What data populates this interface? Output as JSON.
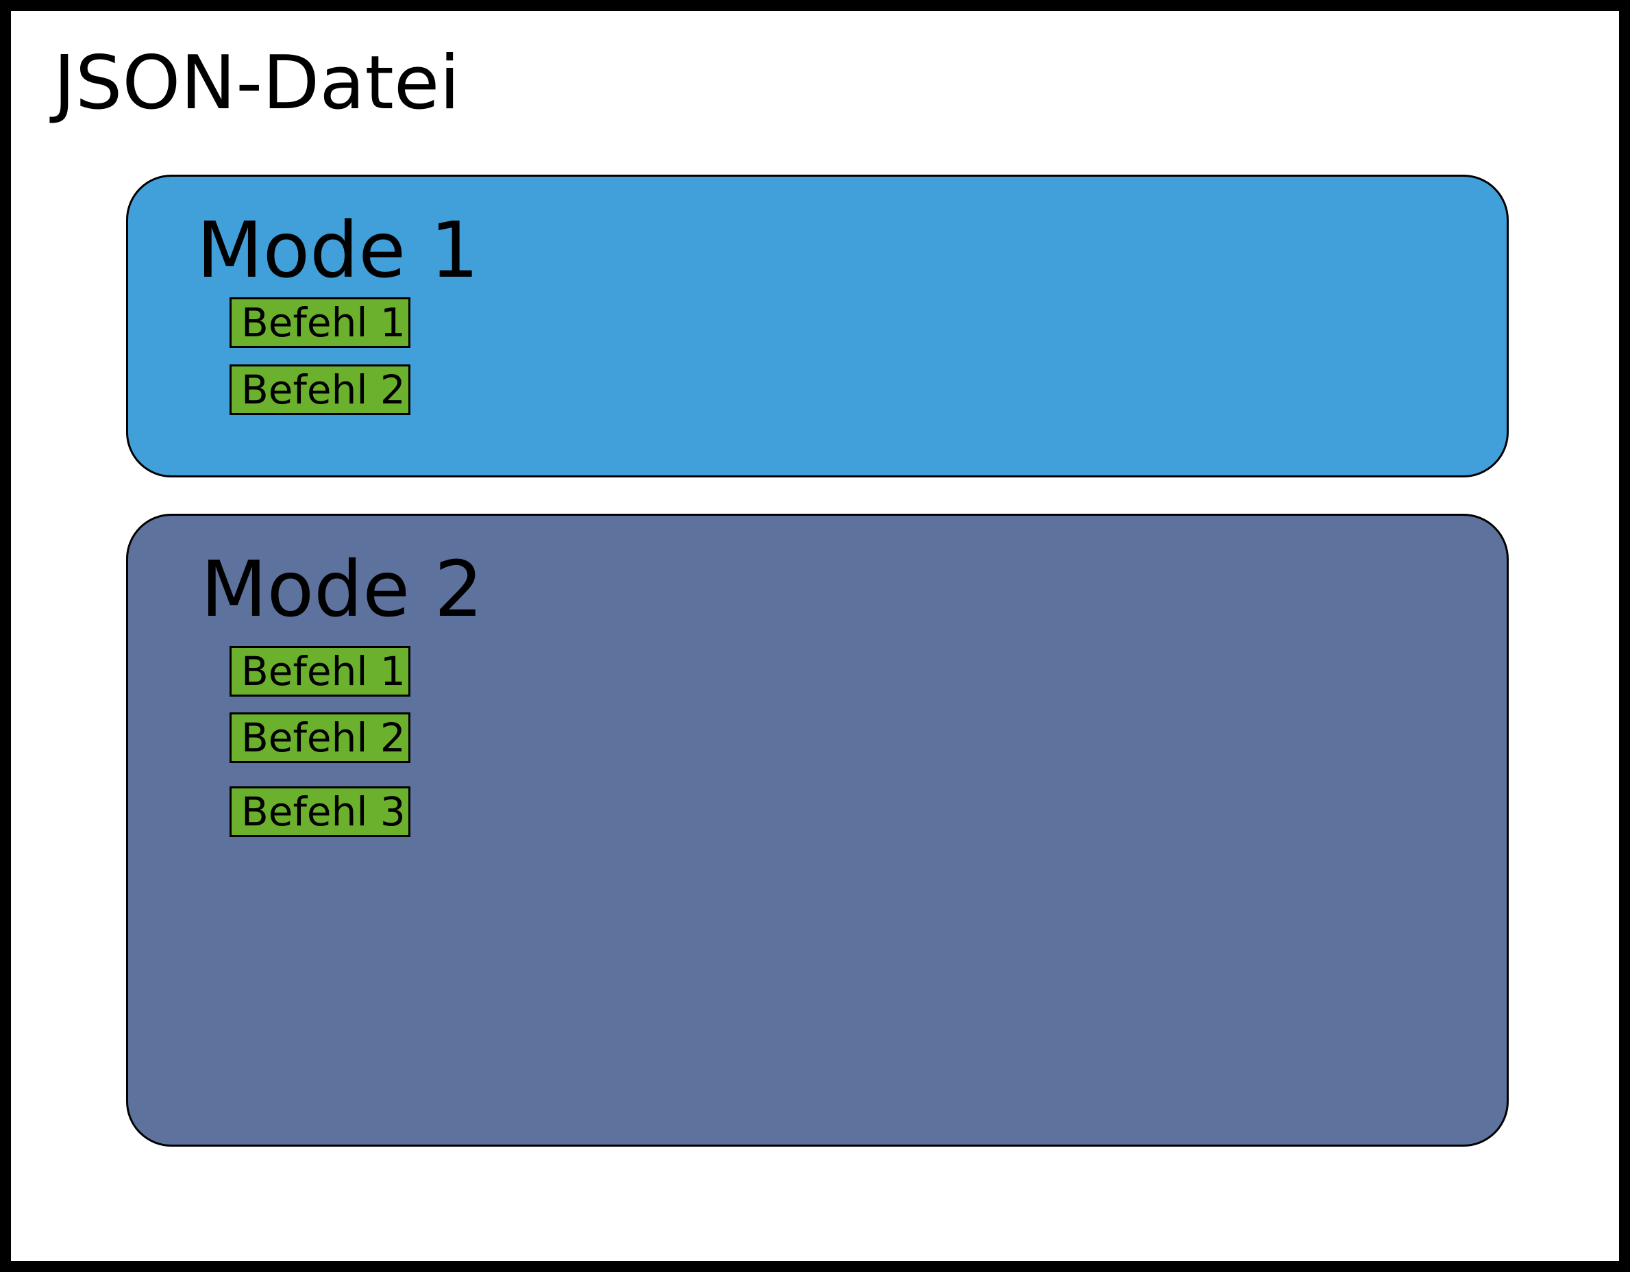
{
  "title": "JSON-Datei",
  "modes": [
    {
      "title": "Mode 1",
      "commands": [
        "Befehl 1",
        "Befehl 2"
      ]
    },
    {
      "title": "Mode 2",
      "commands": [
        "Befehl 1",
        "Befehl 2",
        "Befehl 3"
      ]
    }
  ],
  "colors": {
    "frame_border": "#000000",
    "background": "#ffffff",
    "mode_1_fill": "#419fd9",
    "mode_2_fill": "#5e729e",
    "command_fill": "#6bb12d"
  }
}
